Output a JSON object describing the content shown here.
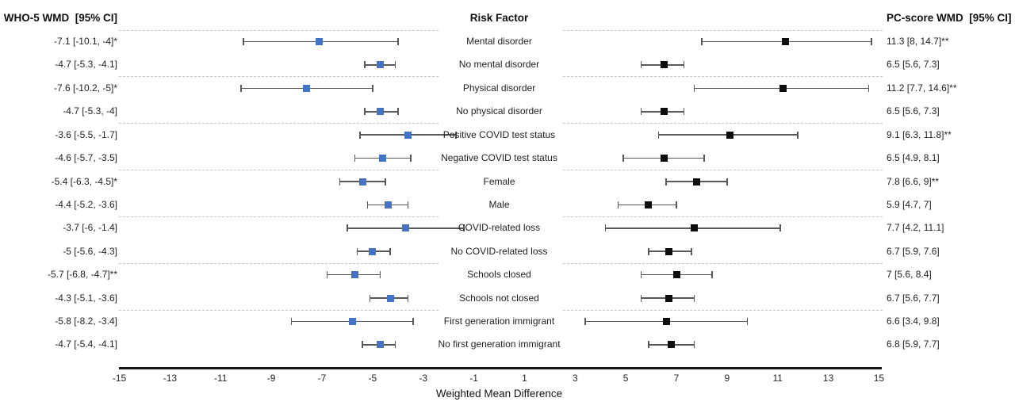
{
  "headers": {
    "left": "WHO-5 WMD  [95% CI]",
    "middle": "Risk Factor",
    "right": "PC-score WMD  [95% CI]"
  },
  "style": {
    "who5_marker_color": "#4472c4",
    "pc_marker_color": "#0d0d0d",
    "bar_color": "#595959",
    "separator_color": "#c6c6c6",
    "axis_color": "#141414",
    "text_color": "#1f1f1f"
  },
  "chart_data": {
    "type": "forest",
    "xlabel": "Weighted Mean Difference",
    "axis": {
      "min": -15,
      "max": 15,
      "ticks": [
        -15,
        -13,
        -11,
        -9,
        -7,
        -5,
        -3,
        -1,
        1,
        3,
        5,
        7,
        9,
        11,
        13,
        15
      ]
    },
    "group_size": 2,
    "series": [
      {
        "name": "WHO-5 WMD"
      },
      {
        "name": "PC-score WMD"
      }
    ],
    "rows": [
      {
        "factor": "Mental disorder",
        "who5_label": "-7.1 [-10.1, -4]*",
        "who5": {
          "est": -7.1,
          "lo": -10.1,
          "hi": -4
        },
        "pc_label": "11.3 [8, 14.7]**",
        "pc": {
          "est": 11.3,
          "lo": 8,
          "hi": 14.7
        }
      },
      {
        "factor": "No mental disorder",
        "who5_label": "-4.7 [-5.3, -4.1]",
        "who5": {
          "est": -4.7,
          "lo": -5.3,
          "hi": -4.1
        },
        "pc_label": "6.5 [5.6, 7.3]",
        "pc": {
          "est": 6.5,
          "lo": 5.6,
          "hi": 7.3
        }
      },
      {
        "factor": "Physical disorder",
        "who5_label": "-7.6 [-10.2, -5]*",
        "who5": {
          "est": -7.6,
          "lo": -10.2,
          "hi": -5
        },
        "pc_label": "11.2 [7.7, 14.6]**",
        "pc": {
          "est": 11.2,
          "lo": 7.7,
          "hi": 14.6
        }
      },
      {
        "factor": "No physical disorder",
        "who5_label": "-4.7 [-5.3, -4]",
        "who5": {
          "est": -4.7,
          "lo": -5.3,
          "hi": -4
        },
        "pc_label": "6.5 [5.6, 7.3]",
        "pc": {
          "est": 6.5,
          "lo": 5.6,
          "hi": 7.3
        }
      },
      {
        "factor": "Positive COVID test status",
        "who5_label": "-3.6 [-5.5, -1.7]",
        "who5": {
          "est": -3.6,
          "lo": -5.5,
          "hi": -1.7
        },
        "pc_label": "9.1 [6.3, 11.8]**",
        "pc": {
          "est": 9.1,
          "lo": 6.3,
          "hi": 11.8
        }
      },
      {
        "factor": "Negative COVID test status",
        "who5_label": "-4.6 [-5.7, -3.5]",
        "who5": {
          "est": -4.6,
          "lo": -5.7,
          "hi": -3.5
        },
        "pc_label": "6.5 [4.9, 8.1]",
        "pc": {
          "est": 6.5,
          "lo": 4.9,
          "hi": 8.1
        }
      },
      {
        "factor": "Female",
        "who5_label": "-5.4 [-6.3, -4.5]*",
        "who5": {
          "est": -5.4,
          "lo": -6.3,
          "hi": -4.5
        },
        "pc_label": "7.8 [6.6, 9]**",
        "pc": {
          "est": 7.8,
          "lo": 6.6,
          "hi": 9
        }
      },
      {
        "factor": "Male",
        "who5_label": "-4.4 [-5.2, -3.6]",
        "who5": {
          "est": -4.4,
          "lo": -5.2,
          "hi": -3.6
        },
        "pc_label": "5.9 [4.7, 7]",
        "pc": {
          "est": 5.9,
          "lo": 4.7,
          "hi": 7
        }
      },
      {
        "factor": "COVID-related loss",
        "who5_label": "-3.7 [-6, -1.4]",
        "who5": {
          "est": -3.7,
          "lo": -6,
          "hi": -1.4
        },
        "pc_label": "7.7 [4.2, 11.1]",
        "pc": {
          "est": 7.7,
          "lo": 4.2,
          "hi": 11.1
        }
      },
      {
        "factor": "No COVID-related loss",
        "who5_label": "-5 [-5.6, -4.3]",
        "who5": {
          "est": -5,
          "lo": -5.6,
          "hi": -4.3
        },
        "pc_label": "6.7 [5.9, 7.6]",
        "pc": {
          "est": 6.7,
          "lo": 5.9,
          "hi": 7.6
        }
      },
      {
        "factor": "Schools closed",
        "who5_label": "-5.7 [-6.8, -4.7]**",
        "who5": {
          "est": -5.7,
          "lo": -6.8,
          "hi": -4.7
        },
        "pc_label": "7 [5.6, 8.4]",
        "pc": {
          "est": 7,
          "lo": 5.6,
          "hi": 8.4
        }
      },
      {
        "factor": "Schools not closed",
        "who5_label": "-4.3 [-5.1, -3.6]",
        "who5": {
          "est": -4.3,
          "lo": -5.1,
          "hi": -3.6
        },
        "pc_label": "6.7 [5.6, 7.7]",
        "pc": {
          "est": 6.7,
          "lo": 5.6,
          "hi": 7.7
        }
      },
      {
        "factor": "First generation immigrant",
        "who5_label": "-5.8 [-8.2, -3.4]",
        "who5": {
          "est": -5.8,
          "lo": -8.2,
          "hi": -3.4
        },
        "pc_label": "6.6 [3.4, 9.8]",
        "pc": {
          "est": 6.6,
          "lo": 3.4,
          "hi": 9.8
        }
      },
      {
        "factor": "No first generation immigrant",
        "who5_label": "-4.7 [-5.4, -4.1]",
        "who5": {
          "est": -4.7,
          "lo": -5.4,
          "hi": -4.1
        },
        "pc_label": "6.8 [5.9, 7.7]",
        "pc": {
          "est": 6.8,
          "lo": 5.9,
          "hi": 7.7
        }
      }
    ]
  }
}
